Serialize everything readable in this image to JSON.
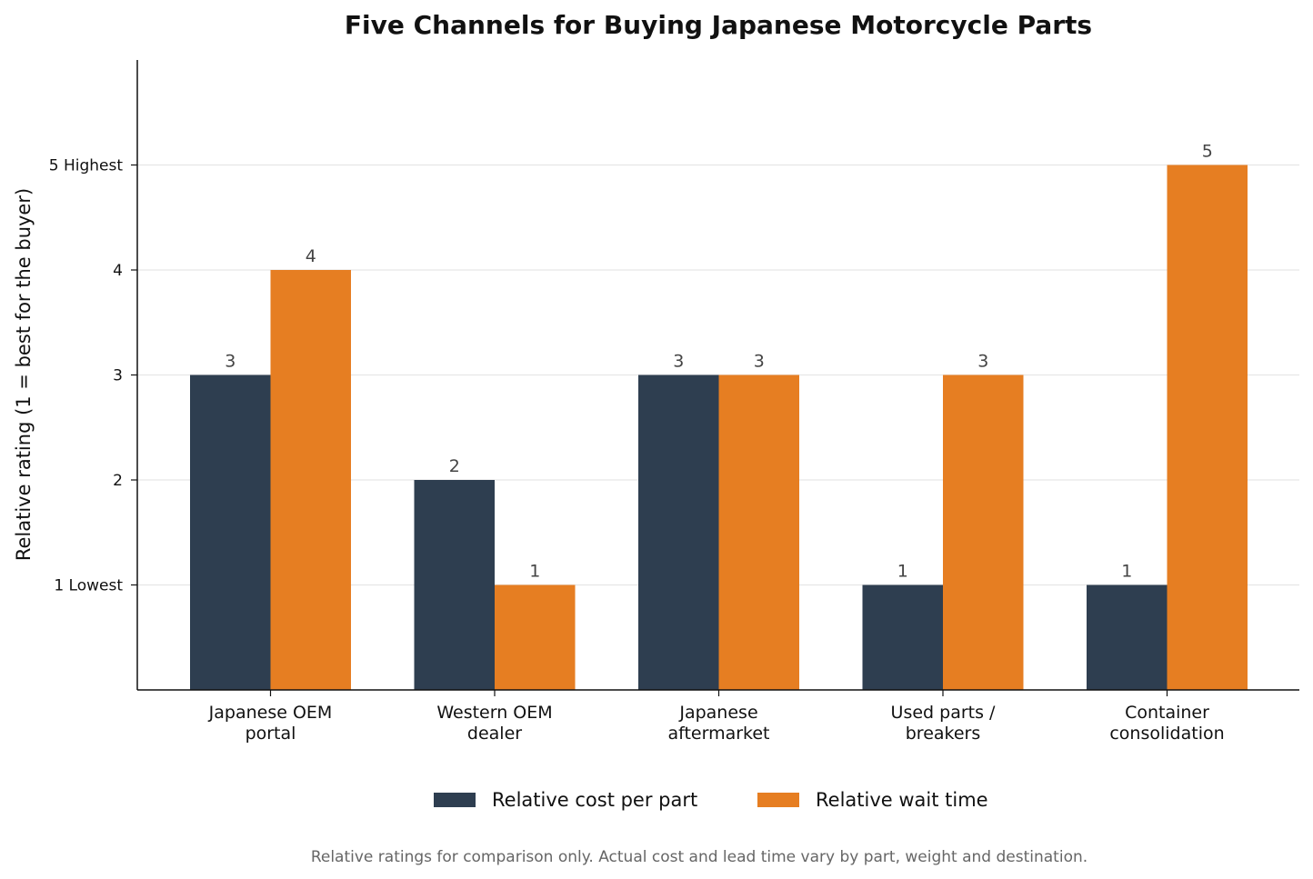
{
  "chart_data": {
    "type": "bar",
    "title": "Five Channels for Buying Japanese Motorcycle Parts",
    "xlabel": "",
    "ylabel": "Relative rating (1 = best for the buyer)",
    "categories": [
      [
        "Japanese OEM",
        "portal"
      ],
      [
        "Western OEM",
        "dealer"
      ],
      [
        "Japanese",
        "aftermarket"
      ],
      [
        "Used parts /",
        "breakers"
      ],
      [
        "Container",
        "consolidation"
      ]
    ],
    "series": [
      {
        "name": "Relative cost per part",
        "color": "#2e3e50",
        "values": [
          3,
          2,
          3,
          1,
          1
        ]
      },
      {
        "name": "Relative wait time",
        "color": "#e67e22",
        "values": [
          4,
          1,
          3,
          3,
          5
        ]
      }
    ],
    "ylim": [
      0,
      6
    ],
    "yticks": [
      {
        "value": 1,
        "label": "1 Lowest"
      },
      {
        "value": 2,
        "label": "2"
      },
      {
        "value": 3,
        "label": "3"
      },
      {
        "value": 4,
        "label": "4"
      },
      {
        "value": 5,
        "label": "5 Highest"
      }
    ],
    "grid": "horizontal",
    "legend_position": "bottom-center",
    "footnote": "Relative ratings for comparison only. Actual cost and lead time vary by part, weight and destination."
  }
}
